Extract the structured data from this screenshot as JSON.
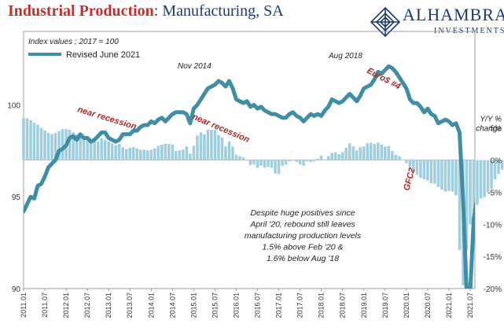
{
  "title": {
    "part1": "Industrial Production",
    "part2": ": Manufacturing, SA"
  },
  "logo": {
    "brand": "ALHAMBRA",
    "sub": "INVESTMENTS"
  },
  "colors": {
    "line": "#3f8ea5",
    "bars": "#9fcfdf",
    "annotation": "#a52a2a",
    "title_red": "#c0312c",
    "title_blue": "#1d3a6e"
  },
  "chart_data": {
    "type": "line",
    "index_note": "Index values ; 2017 = 100",
    "legend": "Revised June 2021",
    "x_labels": [
      "2011.01",
      "2011.07",
      "2012.01",
      "2012.07",
      "2013.01",
      "2013.07",
      "2014.01",
      "2014.07",
      "2015.01",
      "2015.07",
      "2016.01",
      "2016.07",
      "2017.01",
      "2017.07",
      "2018.01",
      "2018.07",
      "2019.01",
      "2019.07",
      "2020.01",
      "2020.07",
      "2021.01",
      "2021.07"
    ],
    "left_axis": {
      "ticks": [
        "90",
        "95",
        "100"
      ],
      "ylim": [
        90,
        104
      ]
    },
    "right_axis": {
      "title": "Y/Y % change",
      "ticks": [
        "-20%",
        "-15%",
        "-10%",
        "-5%",
        "0%",
        "5%"
      ],
      "ylim": [
        -20,
        20
      ]
    },
    "series": [
      {
        "role": "index",
        "start": "2011.01",
        "values": [
          94.2,
          94.6,
          95.0,
          94.9,
          95.6,
          95.7,
          96.1,
          96.6,
          96.8,
          97.0,
          97.5,
          97.6,
          97.8,
          98.2,
          98.3,
          98.1,
          98.4,
          98.2,
          98.2,
          98.0,
          98.1,
          98.3,
          98.5,
          98.5,
          98.2,
          98.1,
          98.0,
          98.1,
          98.4,
          98.4,
          98.4,
          98.6,
          98.6,
          98.8,
          98.9,
          98.9,
          99.1,
          99.0,
          99.2,
          99.3,
          99.1,
          99.3,
          99.5,
          99.6,
          99.6,
          99.6,
          99.5,
          99.0,
          99.8,
          100.0,
          100.3,
          100.6,
          100.9,
          101.0,
          101.1,
          101.3,
          101.2,
          101.0,
          101.3,
          100.9,
          100.3,
          100.2,
          100.1,
          100.2,
          99.9,
          100.0,
          99.8,
          99.9,
          99.7,
          99.6,
          99.5,
          99.5,
          99.4,
          99.3,
          99.3,
          99.5,
          99.6,
          99.4,
          99.3,
          99.1,
          99.3,
          99.5,
          99.4,
          99.5,
          99.4,
          99.7,
          99.9,
          100.3,
          100.2,
          100.1,
          100.2,
          100.4,
          100.6,
          100.4,
          100.2,
          100.5,
          100.9,
          101.0,
          101.1,
          101.4,
          101.8,
          101.7,
          101.9,
          102.1,
          102.0,
          101.8,
          101.5,
          101.2,
          100.9,
          100.3,
          100.1,
          100.1,
          99.9,
          99.6,
          99.8,
          99.5,
          99.4,
          99.0,
          99.1,
          99.2,
          99.1,
          98.9,
          99.0,
          98.5,
          94.8,
          84.4,
          89.4,
          93.8,
          95.0,
          96.2,
          96.5,
          96.7,
          97.0,
          97.5,
          97.7,
          98.1,
          98.3,
          98.7,
          95.6,
          97.9,
          98.5,
          98.7,
          99.4,
          99.9,
          100.4,
          100.4
        ]
      },
      {
        "role": "yoy_percent",
        "start": "2011.01",
        "values": [
          6.5,
          6.5,
          6.2,
          5.8,
          5.5,
          5.0,
          4.6,
          4.2,
          4.0,
          4.2,
          4.5,
          4.8,
          4.8,
          4.7,
          4.3,
          4.0,
          3.5,
          3.2,
          3.0,
          2.8,
          3.0,
          2.9,
          3.4,
          3.1,
          2.9,
          2.6,
          2.3,
          2.5,
          2.0,
          1.7,
          1.9,
          2.0,
          1.8,
          1.6,
          1.6,
          1.5,
          1.6,
          1.8,
          2.2,
          2.4,
          2.5,
          2.5,
          2.4,
          1.4,
          1.5,
          1.6,
          2.1,
          1.0,
          2.2,
          3.8,
          4.3,
          4.0,
          4.7,
          4.7,
          4.7,
          3.9,
          3.5,
          2.1,
          2.9,
          2.1,
          0.8,
          0.6,
          0.4,
          -0.1,
          -0.8,
          -0.7,
          -1.2,
          -0.9,
          -1.2,
          -1.1,
          -1.2,
          -2.1,
          -2.2,
          -0.9,
          -0.7,
          -0.2,
          -0.1,
          -0.3,
          -0.7,
          -0.9,
          -0.2,
          -0.3,
          -0.2,
          0.2,
          0.7,
          0.1,
          0.6,
          1.1,
          1.2,
          0.9,
          1.2,
          1.9,
          2.6,
          2.1,
          1.5,
          2.0,
          2.1,
          2.6,
          2.7,
          2.5,
          2.7,
          2.4,
          2.1,
          2.2,
          1.4,
          0.8,
          0.6,
          0.0,
          -0.5,
          -1.2,
          -1.8,
          -2.3,
          -2.8,
          -3.0,
          -3.2,
          -3.6,
          -3.7,
          -4.2,
          -4.6,
          -4.9,
          -4.8,
          -4.9,
          -5.5,
          -14.0,
          -19.5,
          -14.0,
          -10.0,
          -8.0,
          -7.0,
          -6.0,
          -5.8,
          -5.0,
          -4.5,
          -3.0,
          -2.2,
          -1.5,
          -0.8,
          0.3,
          13.0,
          27.0,
          31.0,
          16.0,
          9.0,
          5.0
        ]
      }
    ],
    "annotations": [
      {
        "text": "near recession",
        "type": "label",
        "rotation": 17
      },
      {
        "text": "Nov 2014",
        "type": "peak"
      },
      {
        "text": "near recession",
        "type": "label",
        "rotation": 23
      },
      {
        "text": "Aug 2018",
        "type": "peak"
      },
      {
        "text": "Euro$ #4",
        "type": "label",
        "rotation": 28
      },
      {
        "text": "GFC2",
        "type": "label",
        "rotation": -75
      }
    ],
    "callout_lines": [
      "Despite huge positives since",
      "April '20, rebound still leaves",
      "manufacturing production levels",
      "1.5% above Feb '20 &",
      "1.6% below Aug '18"
    ]
  }
}
